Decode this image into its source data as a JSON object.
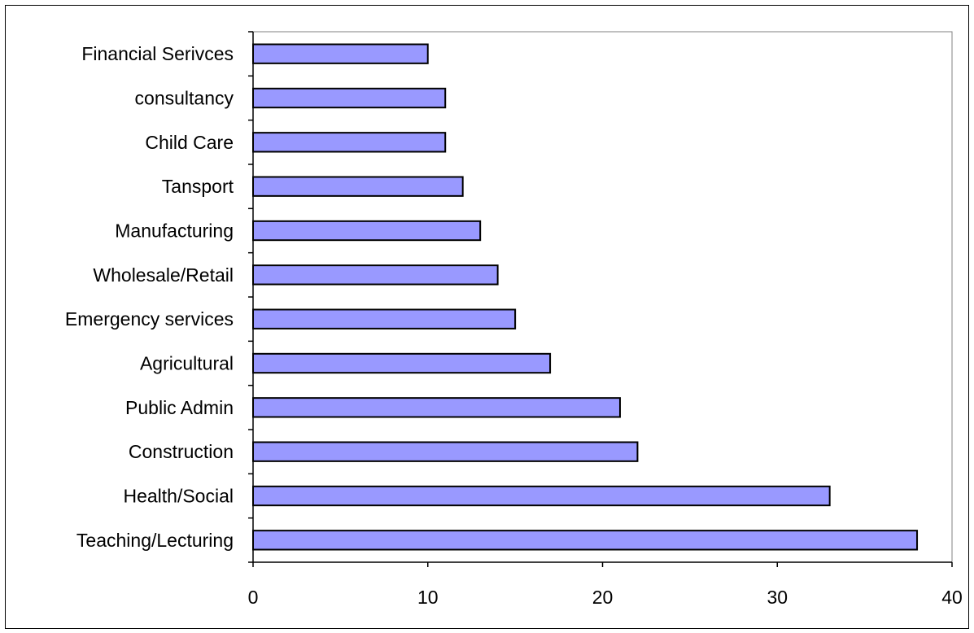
{
  "chart_data": {
    "type": "bar",
    "orientation": "horizontal",
    "title": "",
    "xlabel": "",
    "ylabel": "",
    "categories": [
      "Financial Serivces",
      "consultancy",
      "Child Care",
      "Tansport",
      "Manufacturing",
      "Wholesale/Retail",
      "Emergency services",
      "Agricultural",
      "Public Admin",
      "Construction",
      "Health/Social",
      "Teaching/Lecturing"
    ],
    "values": [
      10,
      11,
      11,
      12,
      13,
      14,
      15,
      17,
      21,
      22,
      33,
      38
    ],
    "xlim": [
      0,
      40
    ],
    "xticks": [
      0,
      10,
      20,
      30,
      40
    ],
    "grid": false,
    "legend": "none",
    "colors": {
      "bar_fill": "#9999ff",
      "bar_stroke": "#000000",
      "axis": "#000000",
      "plot_border": "#808080",
      "frame": "#000000",
      "background": "#ffffff"
    }
  }
}
